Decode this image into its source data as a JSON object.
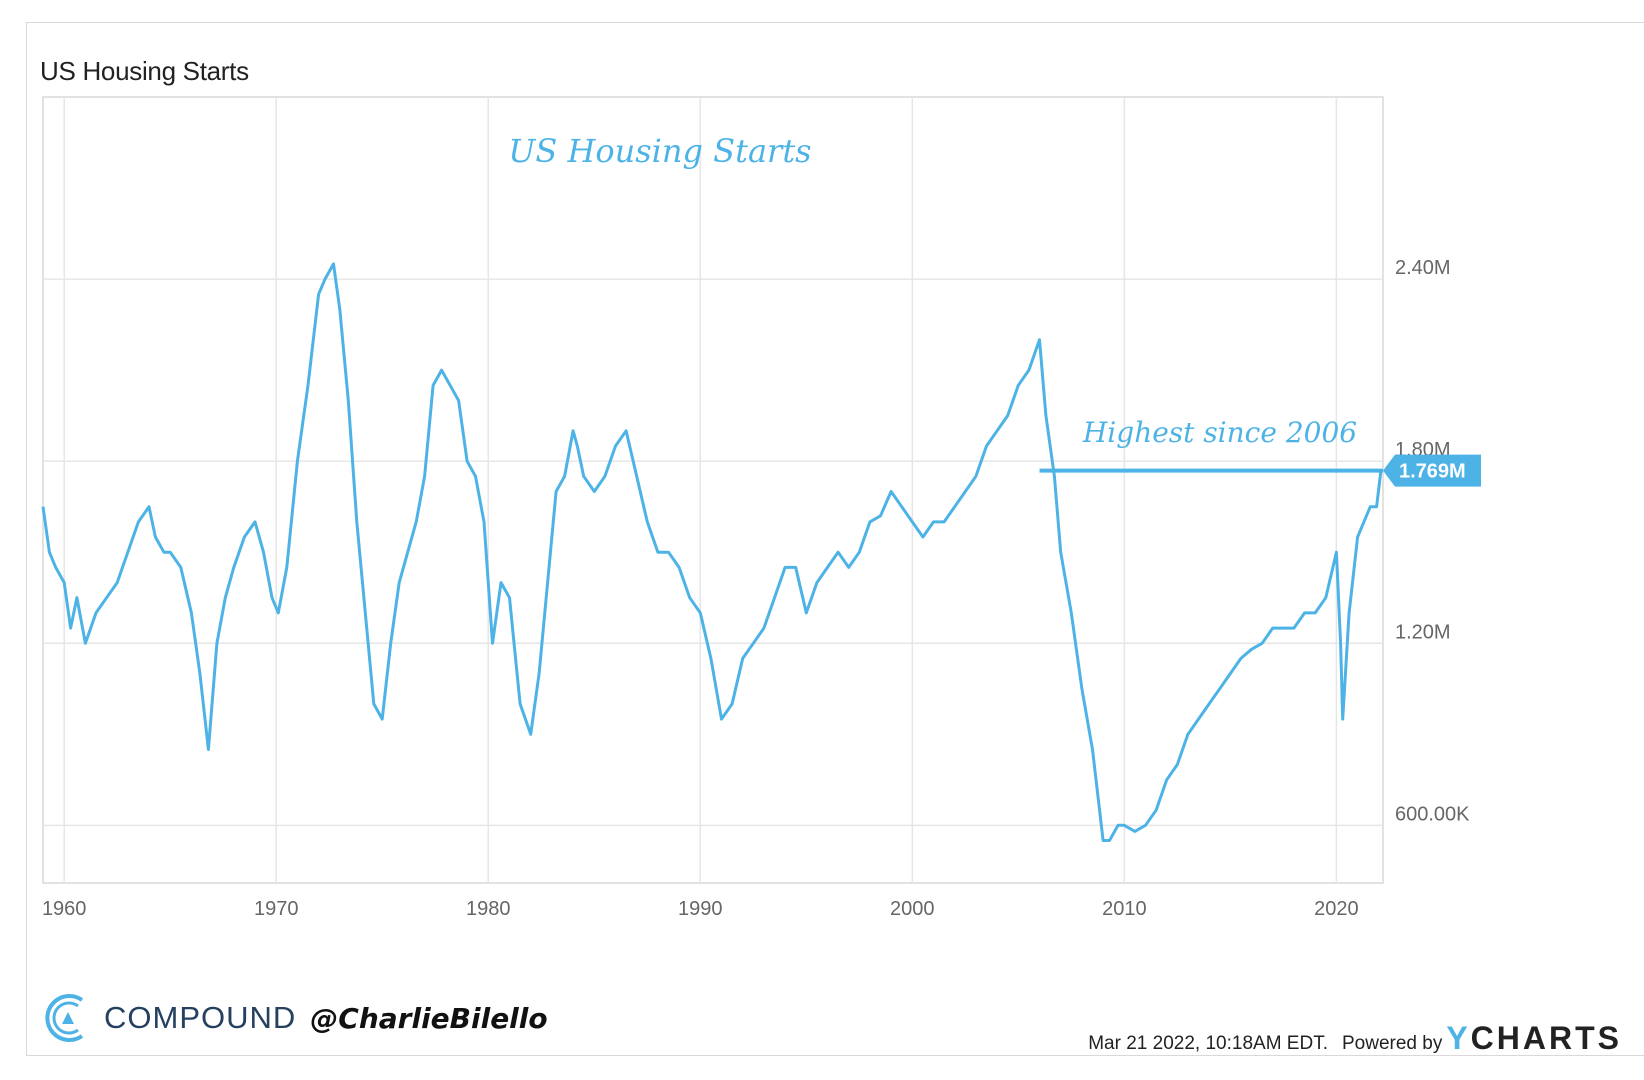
{
  "header": {
    "title": "US Housing Starts"
  },
  "chart_data": {
    "type": "line",
    "title": "US Housing Starts",
    "annotation_title": "US Housing Starts",
    "annotation": "Highest since 2006",
    "last_value_label": "1.769M",
    "highlight_level": 1.769,
    "xlim": [
      1959.0,
      2022.2
    ],
    "ylim": [
      0.41,
      3.0
    ],
    "x_ticks": [
      1960,
      1970,
      1980,
      1990,
      2000,
      2010,
      2020
    ],
    "x_tick_labels": [
      "1960",
      "1970",
      "1980",
      "1990",
      "2000",
      "2010",
      "2020"
    ],
    "y_ticks": [
      0.6,
      1.2,
      1.8,
      2.4
    ],
    "y_tick_labels": [
      "600.00K",
      "1.20M",
      "1.80M",
      "2.40M"
    ],
    "grid": true,
    "line_color": "#4db3e6",
    "series": [
      {
        "x": [
          1959.0,
          1959.3,
          1959.6,
          1960.0,
          1960.3,
          1960.6,
          1961.0,
          1961.5,
          1962.0,
          1962.5,
          1963.0,
          1963.5,
          1964.0,
          1964.3,
          1964.7,
          1965.0,
          1965.5,
          1966.0,
          1966.4,
          1966.8,
          1967.2,
          1967.6,
          1968.0,
          1968.5,
          1969.0,
          1969.4,
          1969.8,
          1970.1,
          1970.5,
          1971.0,
          1971.5,
          1972.0,
          1972.3,
          1972.7,
          1973.0,
          1973.4,
          1973.8,
          1974.2,
          1974.6,
          1975.0,
          1975.4,
          1975.8,
          1976.2,
          1976.6,
          1977.0,
          1977.4,
          1977.8,
          1978.2,
          1978.6,
          1979.0,
          1979.4,
          1979.8,
          1980.2,
          1980.6,
          1981.0,
          1981.5,
          1982.0,
          1982.4,
          1982.8,
          1983.2,
          1983.6,
          1984.0,
          1984.2,
          1984.5,
          1985.0,
          1985.5,
          1986.0,
          1986.5,
          1987.0,
          1987.5,
          1988.0,
          1988.5,
          1989.0,
          1989.5,
          1990.0,
          1990.5,
          1991.0,
          1991.5,
          1992.0,
          1992.5,
          1993.0,
          1993.5,
          1994.0,
          1994.5,
          1995.0,
          1995.5,
          1996.0,
          1996.5,
          1997.0,
          1997.5,
          1998.0,
          1998.5,
          1999.0,
          1999.5,
          2000.0,
          2000.5,
          2001.0,
          2001.5,
          2002.0,
          2002.5,
          2003.0,
          2003.5,
          2004.0,
          2004.5,
          2005.0,
          2005.5,
          2006.0,
          2006.3,
          2006.7,
          2007.0,
          2007.5,
          2008.0,
          2008.5,
          2009.0,
          2009.3,
          2009.7,
          2010.0,
          2010.5,
          2011.0,
          2011.5,
          2012.0,
          2012.5,
          2013.0,
          2013.5,
          2014.0,
          2014.5,
          2015.0,
          2015.5,
          2016.0,
          2016.5,
          2017.0,
          2017.5,
          2018.0,
          2018.5,
          2019.0,
          2019.5,
          2020.0,
          2020.2,
          2020.3,
          2020.6,
          2021.0,
          2021.3,
          2021.6,
          2021.9,
          2022.1
        ],
        "values": [
          1.65,
          1.5,
          1.45,
          1.4,
          1.25,
          1.35,
          1.2,
          1.3,
          1.35,
          1.4,
          1.5,
          1.6,
          1.65,
          1.55,
          1.5,
          1.5,
          1.45,
          1.3,
          1.1,
          0.85,
          1.2,
          1.35,
          1.45,
          1.55,
          1.6,
          1.5,
          1.35,
          1.3,
          1.45,
          1.8,
          2.05,
          2.35,
          2.4,
          2.45,
          2.3,
          2.0,
          1.6,
          1.3,
          1.0,
          0.95,
          1.2,
          1.4,
          1.5,
          1.6,
          1.75,
          2.05,
          2.1,
          2.05,
          2.0,
          1.8,
          1.75,
          1.6,
          1.2,
          1.4,
          1.35,
          1.0,
          0.9,
          1.1,
          1.4,
          1.7,
          1.75,
          1.9,
          1.85,
          1.75,
          1.7,
          1.75,
          1.85,
          1.9,
          1.75,
          1.6,
          1.5,
          1.5,
          1.45,
          1.35,
          1.3,
          1.15,
          0.95,
          1.0,
          1.15,
          1.2,
          1.25,
          1.35,
          1.45,
          1.45,
          1.3,
          1.4,
          1.45,
          1.5,
          1.45,
          1.5,
          1.6,
          1.62,
          1.7,
          1.65,
          1.6,
          1.55,
          1.6,
          1.6,
          1.65,
          1.7,
          1.75,
          1.85,
          1.9,
          1.95,
          2.05,
          2.1,
          2.2,
          1.95,
          1.75,
          1.5,
          1.3,
          1.05,
          0.85,
          0.55,
          0.55,
          0.6,
          0.6,
          0.58,
          0.6,
          0.65,
          0.75,
          0.8,
          0.9,
          0.95,
          1.0,
          1.05,
          1.1,
          1.15,
          1.18,
          1.2,
          1.25,
          1.25,
          1.25,
          1.3,
          1.3,
          1.35,
          1.5,
          1.2,
          0.95,
          1.3,
          1.55,
          1.6,
          1.65,
          1.65,
          1.769
        ]
      }
    ]
  },
  "brand": {
    "name": "COMPOUND",
    "handle": "@CharlieBilello"
  },
  "footer": {
    "date": "Mar 21 2022, 10:18AM EDT.",
    "powered": "Powered by",
    "logo_y": "Y",
    "logo_rest": "CHARTS"
  }
}
